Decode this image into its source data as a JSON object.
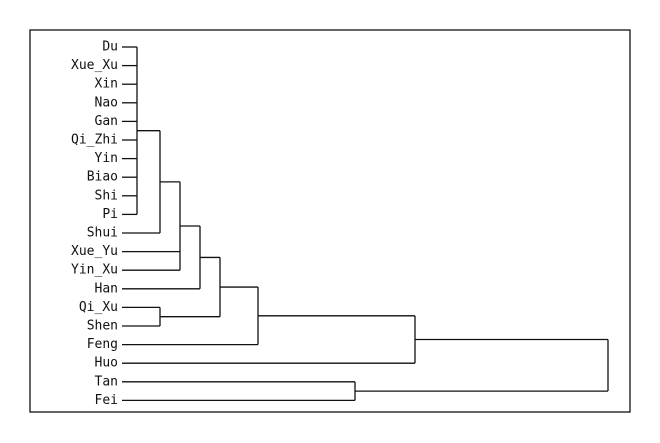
{
  "chart_data": {
    "type": "dendrogram",
    "leaves": [
      "Du",
      "Xue_Xu",
      "Xin",
      "Nao",
      "Gan",
      "Qi_Zhi",
      "Yin",
      "Biao",
      "Shi",
      "Pi",
      "Shui",
      "Xue_Yu",
      "Yin_Xu",
      "Han",
      "Qi_Xu",
      "Shen",
      "Feng",
      "Huo",
      "Tan",
      "Fei"
    ],
    "merges": [
      {
        "children": [
          0,
          1,
          2,
          3,
          4,
          5,
          6,
          7,
          8,
          9
        ],
        "height": 9
      },
      {
        "children": [
          20,
          10
        ],
        "height": 32
      },
      {
        "children": [
          21,
          11,
          12
        ],
        "height": 52
      },
      {
        "children": [
          22,
          13
        ],
        "height": 72
      },
      {
        "children": [
          14,
          15
        ],
        "height": 32
      },
      {
        "children": [
          23,
          24
        ],
        "height": 92
      },
      {
        "children": [
          25,
          16
        ],
        "height": 130
      },
      {
        "children": [
          26,
          17
        ],
        "height": 287
      },
      {
        "children": [
          18,
          19
        ],
        "height": 227
      },
      {
        "children": [
          27,
          28
        ],
        "height": 480
      }
    ]
  }
}
